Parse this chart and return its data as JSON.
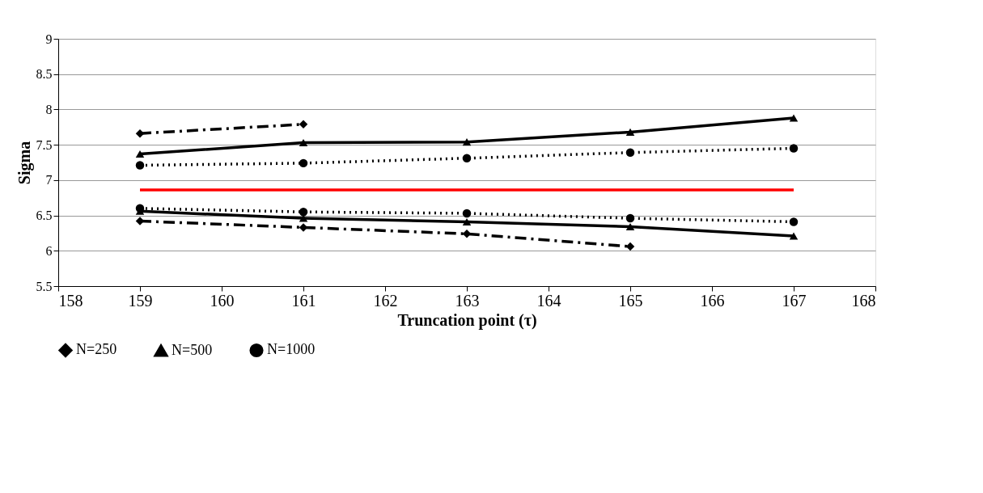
{
  "chart_data": {
    "type": "line",
    "xlabel": "Truncation point (τ)",
    "ylabel": "Sigma",
    "xlim": [
      158,
      168
    ],
    "xticks": [
      158,
      159,
      160,
      161,
      162,
      163,
      164,
      165,
      166,
      167,
      168
    ],
    "ylim": [
      5.5,
      9
    ],
    "yticks": [
      5.5,
      6,
      6.5,
      7,
      7.5,
      8,
      8.5,
      9
    ],
    "grid": "y",
    "legend": "bottom",
    "series": [
      {
        "name": "N=250",
        "color": "#000000",
        "marker": "diamond",
        "line_style": "dashed",
        "x": [
          159,
          161
        ],
        "values": [
          7.66,
          7.79
        ]
      },
      {
        "color": "#000000",
        "marker": "diamond",
        "line_style": "dashed",
        "x": [
          159,
          161,
          163,
          165
        ],
        "values": [
          6.42,
          6.33,
          6.24,
          6.06
        ]
      },
      {
        "name": "N=500",
        "color": "#000000",
        "marker": "triangle",
        "line_style": "solid",
        "x": [
          159,
          161,
          163,
          165,
          167
        ],
        "values": [
          7.37,
          7.53,
          7.54,
          7.68,
          7.88
        ]
      },
      {
        "color": "#000000",
        "marker": "triangle",
        "line_style": "solid",
        "x": [
          159,
          161,
          163,
          165,
          167
        ],
        "values": [
          6.56,
          6.46,
          6.41,
          6.34,
          6.21
        ]
      },
      {
        "name": "N=1000",
        "color": "#000000",
        "marker": "circle",
        "line_style": "dotted",
        "x": [
          159,
          161,
          163,
          165,
          167
        ],
        "values": [
          7.21,
          7.24,
          7.31,
          7.39,
          7.45
        ]
      },
      {
        "color": "#000000",
        "marker": "circle",
        "line_style": "dotted",
        "x": [
          159,
          161,
          163,
          165,
          167
        ],
        "values": [
          6.6,
          6.55,
          6.53,
          6.46,
          6.41
        ]
      },
      {
        "color": "#ff0000",
        "marker": "none",
        "line_style": "solid",
        "x": [
          159,
          167
        ],
        "values": [
          6.86,
          6.86
        ]
      }
    ]
  }
}
